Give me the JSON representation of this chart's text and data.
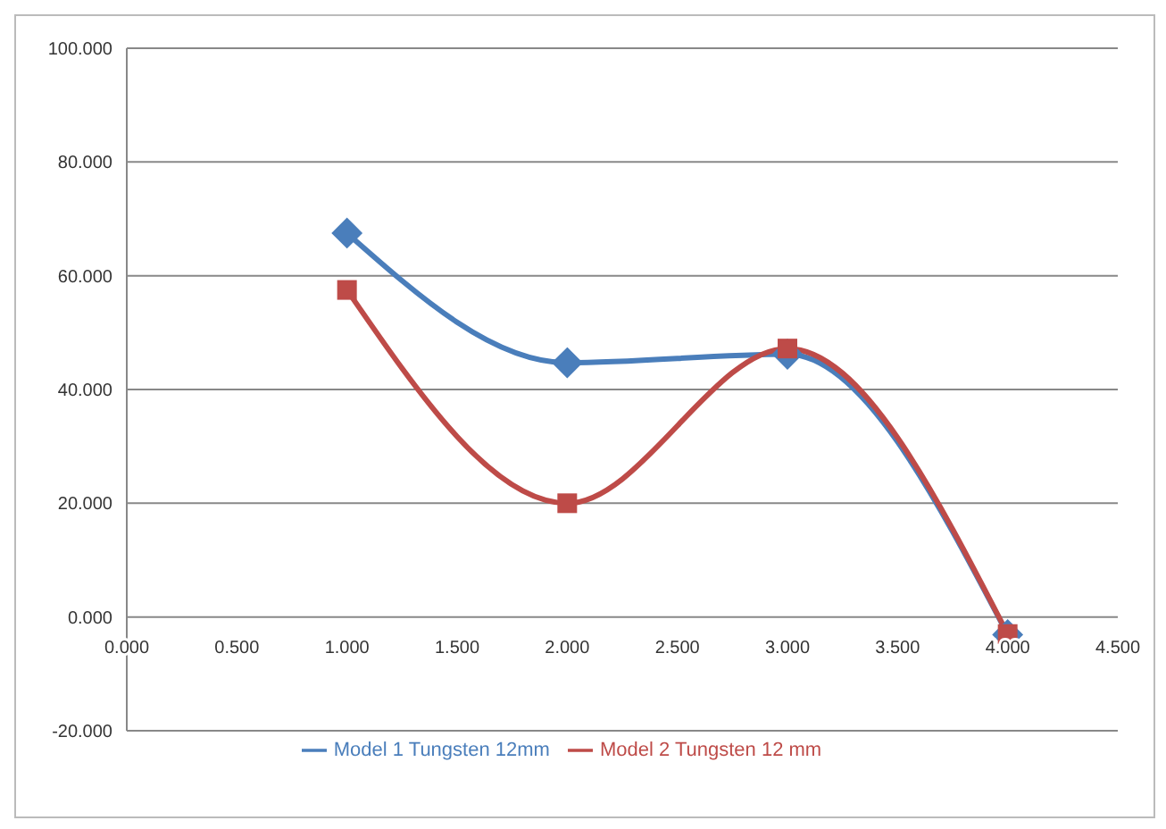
{
  "chart_data": {
    "type": "line",
    "x": [
      1,
      2,
      3,
      4
    ],
    "series": [
      {
        "name": "Model 1 Tungsten 12mm",
        "color": "#4a7ebb",
        "values": [
          67.5,
          44.7,
          46.2,
          -3.1
        ],
        "marker": "diamond"
      },
      {
        "name": "Model 2 Tungsten 12 mm",
        "color": "#be4b48",
        "values": [
          57.5,
          20,
          47.2,
          -3
        ]
      }
    ],
    "marker": "square",
    "xlim": [
      0,
      4.5
    ],
    "xticks": [
      {
        "value": 0,
        "label": "0.000"
      },
      {
        "value": 0.5,
        "label": "0.500"
      },
      {
        "value": 1,
        "label": "1.000"
      },
      {
        "value": 1.5,
        "label": "1.500"
      },
      {
        "value": 2,
        "label": "2.000"
      },
      {
        "value": 2.5,
        "label": "2.500"
      },
      {
        "value": 3,
        "label": "3.000"
      },
      {
        "value": 3.5,
        "label": "3.500"
      },
      {
        "value": 4,
        "label": "4.000"
      },
      {
        "value": 4.5,
        "label": "4.500"
      }
    ],
    "ylim": [
      -20,
      100
    ],
    "yticks": [
      {
        "value": -20,
        "label": "-20.000"
      },
      {
        "value": 0,
        "label": "0.000"
      },
      {
        "value": 20,
        "label": "20.000"
      },
      {
        "value": 40,
        "label": "40.000"
      },
      {
        "value": 60,
        "label": "60.000"
      },
      {
        "value": 80,
        "label": "80.000"
      },
      {
        "value": 100,
        "label": "100.000"
      }
    ],
    "grid": "y",
    "legend": "bottom"
  }
}
